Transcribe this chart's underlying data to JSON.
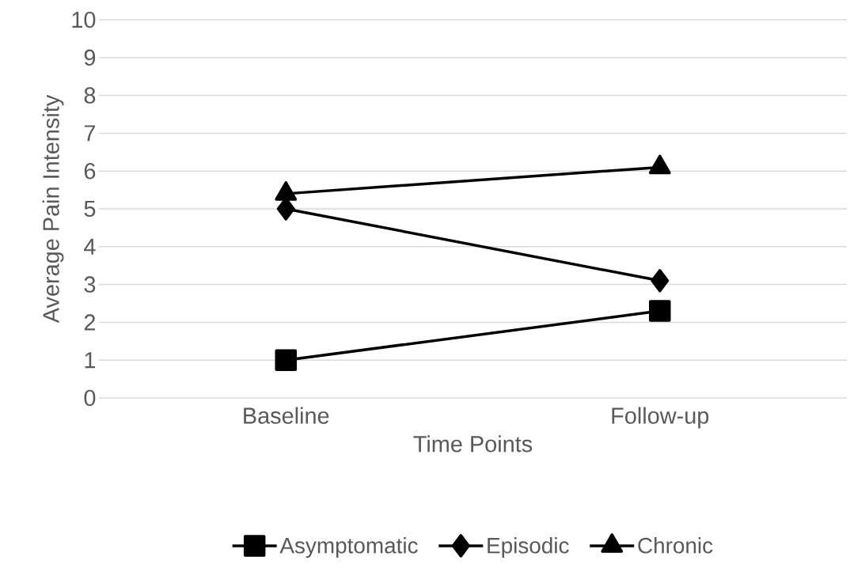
{
  "chart_data": {
    "type": "line",
    "xlabel": "Time Points",
    "ylabel": "Average Pain Intensity",
    "categories": [
      "Baseline",
      "Follow-up"
    ],
    "series": [
      {
        "name": "Asymptomatic",
        "color": "#000000",
        "marker": "square",
        "values": [
          1.0,
          2.3
        ]
      },
      {
        "name": "Episodic",
        "color": "#000000",
        "marker": "diamond",
        "values": [
          5.0,
          3.1
        ]
      },
      {
        "name": "Chronic",
        "color": "#000000",
        "marker": "triangle",
        "values": [
          5.4,
          6.1
        ]
      }
    ],
    "ylim": [
      0,
      10
    ],
    "yticks": [
      0,
      1,
      2,
      3,
      4,
      5,
      6,
      7,
      8,
      9,
      10
    ],
    "grid": "y",
    "legend": "bottom",
    "line_style": "solid"
  }
}
